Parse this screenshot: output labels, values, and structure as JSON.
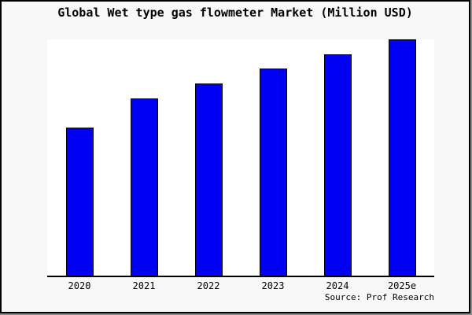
{
  "window": {
    "background": "#f8f8f8",
    "plot_background": "#ffffff",
    "border_color": "#000000",
    "shadow_color": "#8e8e8e"
  },
  "footer": {
    "source": "Source: Prof Research"
  },
  "chart_data": {
    "type": "bar",
    "title": "Global Wet type gas flowmeter Market (Million USD)",
    "categories": [
      "2020",
      "2021",
      "2022",
      "2023",
      "2024",
      "2025e"
    ],
    "values": [
      62.8,
      75.0,
      81.5,
      87.6,
      93.6,
      100.0
    ],
    "values_note": "No y-axis or data labels shown; values estimated as bar heights relative to tallest bar (2025e = 100)",
    "xlabel": "",
    "ylabel": "",
    "grid": false,
    "legend": false,
    "bar_color": "#0000f5",
    "bar_border_color": "#000000",
    "axis_color": "#000000",
    "source": "Source: Prof Research"
  }
}
